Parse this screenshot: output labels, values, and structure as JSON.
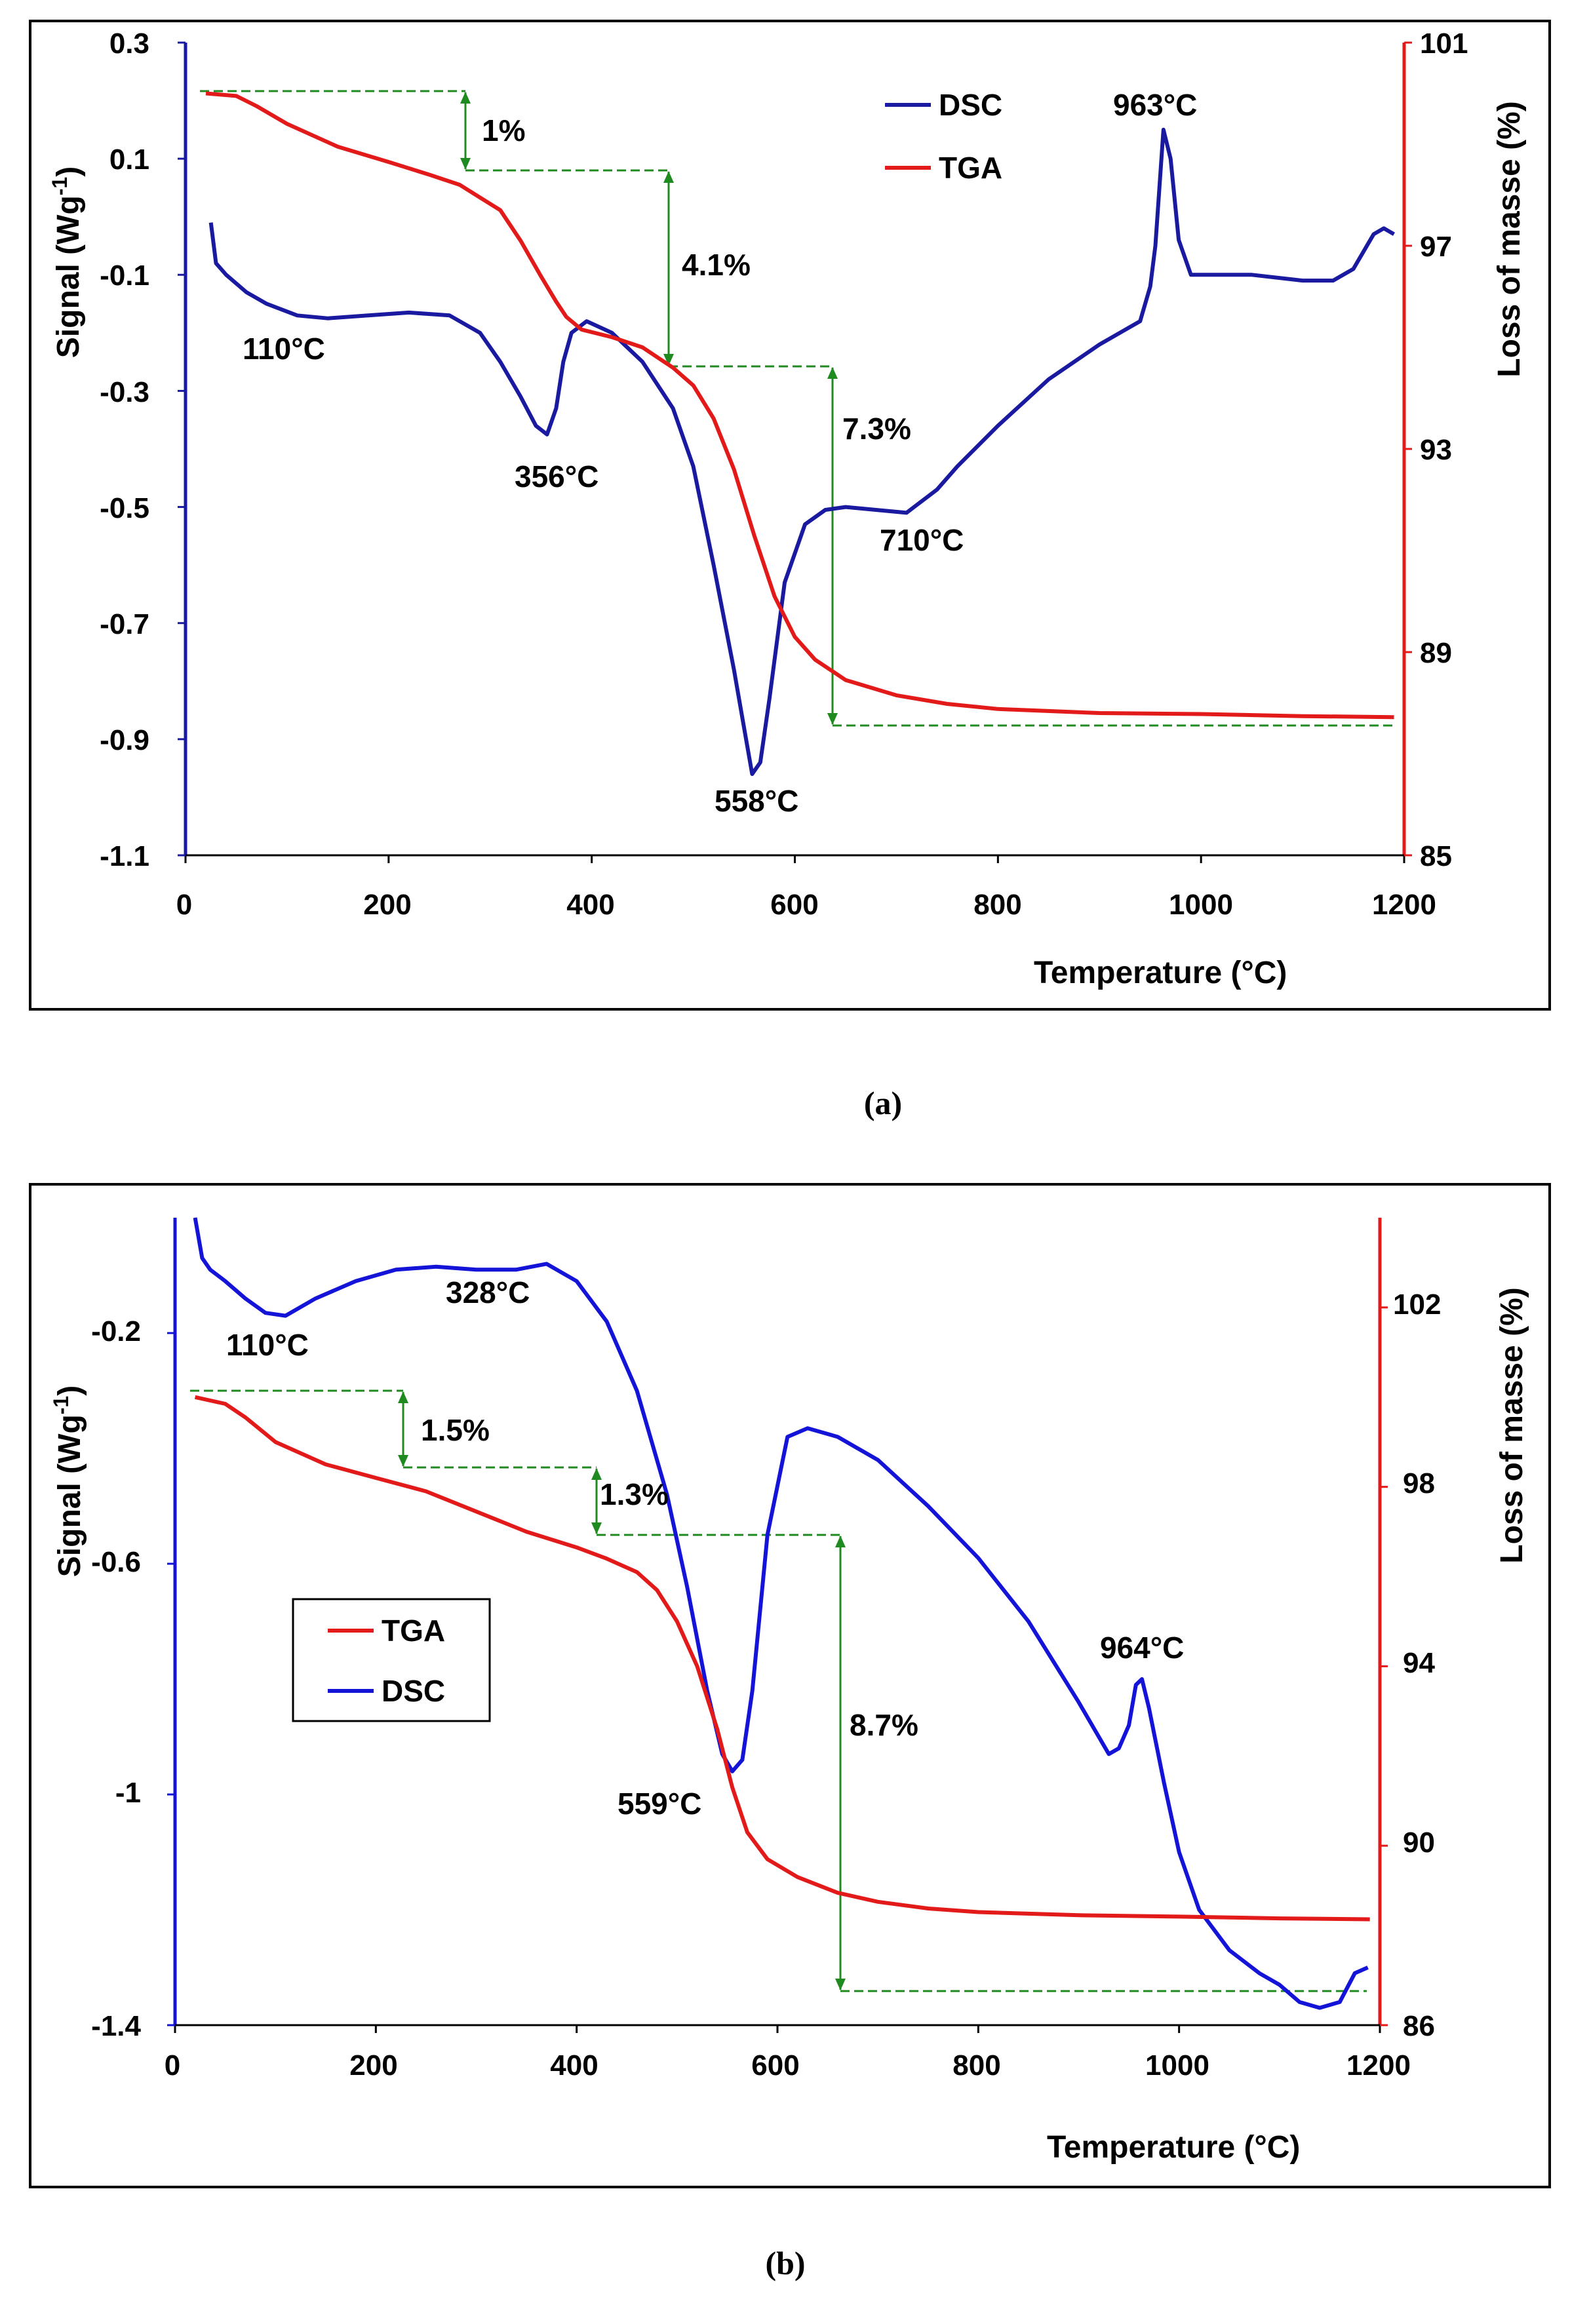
{
  "chart_data": [
    {
      "type": "line",
      "caption": "(a)",
      "xlabel": "Temperature (°C)",
      "ylabel_left": "Signal (Wg-1)",
      "ylabel_left_main": "Signal (Wg",
      "ylabel_left_sup": "-1",
      "ylabel_left_end": ")",
      "ylabel_right": "Loss of masse (%)",
      "xlim": [
        0,
        1200
      ],
      "ylim_left": [
        -1.1,
        0.3
      ],
      "ylim_right": [
        85,
        101
      ],
      "x_ticks": [
        "0",
        "200",
        "400",
        "600",
        "800",
        "1000",
        "1200"
      ],
      "y_left_ticks": [
        "0.3",
        "0.1",
        "-0.1",
        "-0.3",
        "-0.5",
        "-0.7",
        "-0.9",
        "-1.1"
      ],
      "y_right_ticks": [
        "101",
        "97",
        "93",
        "89",
        "85"
      ],
      "colors": {
        "DSC": "#1a1aa0",
        "TGA": "#e31a1a",
        "axis_right": "#e31a1a",
        "axis_left": "#1a1aa0",
        "guide": "#1f8a1f"
      },
      "legend": [
        "DSC",
        "TGA"
      ],
      "legend_position": "top-right",
      "series": [
        {
          "name": "DSC",
          "axis": "left",
          "x": [
            25,
            30,
            40,
            60,
            80,
            110,
            140,
            180,
            220,
            260,
            290,
            310,
            330,
            345,
            356,
            365,
            372,
            380,
            395,
            420,
            450,
            480,
            500,
            520,
            540,
            550,
            558,
            566,
            575,
            590,
            610,
            630,
            650,
            680,
            710,
            740,
            760,
            800,
            850,
            900,
            940,
            950,
            955,
            963,
            970,
            978,
            990,
            1010,
            1050,
            1100,
            1130,
            1150,
            1170,
            1180,
            1190
          ],
          "values": [
            -0.01,
            -0.08,
            -0.1,
            -0.13,
            -0.15,
            -0.17,
            -0.175,
            -0.17,
            -0.165,
            -0.17,
            -0.2,
            -0.25,
            -0.31,
            -0.36,
            -0.375,
            -0.33,
            -0.25,
            -0.2,
            -0.18,
            -0.2,
            -0.25,
            -0.33,
            -0.43,
            -0.6,
            -0.78,
            -0.88,
            -0.96,
            -0.94,
            -0.83,
            -0.63,
            -0.53,
            -0.505,
            -0.5,
            -0.505,
            -0.51,
            -0.47,
            -0.43,
            -0.36,
            -0.28,
            -0.22,
            -0.18,
            -0.12,
            -0.05,
            0.15,
            0.1,
            -0.04,
            -0.1,
            -0.1,
            -0.1,
            -0.11,
            -0.11,
            -0.09,
            -0.03,
            -0.02,
            -0.03
          ]
        },
        {
          "name": "TGA",
          "axis": "right",
          "x": [
            20,
            50,
            70,
            100,
            150,
            200,
            240,
            270,
            290,
            310,
            330,
            350,
            365,
            375,
            390,
            420,
            450,
            480,
            500,
            520,
            540,
            560,
            580,
            600,
            620,
            650,
            700,
            750,
            800,
            900,
            1000,
            1100,
            1190
          ],
          "values": [
            100.0,
            99.95,
            99.75,
            99.4,
            98.95,
            98.65,
            98.4,
            98.2,
            97.95,
            97.7,
            97.1,
            96.4,
            95.9,
            95.6,
            95.35,
            95.2,
            95.0,
            94.6,
            94.25,
            93.6,
            92.6,
            91.3,
            90.1,
            89.3,
            88.85,
            88.45,
            88.15,
            87.98,
            87.88,
            87.8,
            87.78,
            87.74,
            87.72
          ]
        }
      ],
      "annotations": [
        "110°C",
        "356°C",
        "558°C",
        "710°C",
        "963°C",
        "1%",
        "4.1%",
        "7.3%"
      ]
    },
    {
      "type": "line",
      "caption": "(b)",
      "xlabel": "Temperature (°C)",
      "ylabel_left": "Signal (Wg-1)",
      "ylabel_left_main": "Signal (Wg",
      "ylabel_left_sup": "-1",
      "ylabel_left_end": ")",
      "ylabel_right": "Loss of masse (%)",
      "xlim": [
        0,
        1200
      ],
      "ylim_left": [
        -1.4,
        0.0
      ],
      "ylim_right": [
        86,
        104
      ],
      "x_ticks": [
        "0",
        "200",
        "400",
        "600",
        "800",
        "1000",
        "1200"
      ],
      "y_left_ticks": [
        "-0.2",
        "-0.6",
        "-1",
        "-1.4"
      ],
      "y_right_ticks": [
        "102",
        "98",
        "94",
        "90",
        "86"
      ],
      "colors": {
        "DSC": "#1414d8",
        "TGA": "#e31a1a",
        "axis_right": "#e31a1a",
        "axis_left": "#1414d8",
        "guide": "#1f8a1f"
      },
      "legend": [
        "TGA",
        "DSC"
      ],
      "legend_position": "middle-left",
      "series": [
        {
          "name": "DSC",
          "axis": "left",
          "x": [
            20,
            27,
            35,
            50,
            70,
            90,
            110,
            140,
            180,
            220,
            260,
            300,
            340,
            370,
            400,
            430,
            460,
            490,
            510,
            530,
            545,
            555,
            565,
            575,
            590,
            610,
            630,
            660,
            700,
            750,
            800,
            850,
            900,
            930,
            940,
            950,
            957,
            963,
            970,
            985,
            1000,
            1020,
            1050,
            1080,
            1100,
            1120,
            1140,
            1160,
            1175,
            1188
          ],
          "values": [
            0.0,
            -0.07,
            -0.09,
            -0.11,
            -0.14,
            -0.165,
            -0.17,
            -0.14,
            -0.11,
            -0.09,
            -0.085,
            -0.09,
            -0.09,
            -0.08,
            -0.11,
            -0.18,
            -0.3,
            -0.48,
            -0.64,
            -0.82,
            -0.93,
            -0.96,
            -0.94,
            -0.82,
            -0.55,
            -0.38,
            -0.365,
            -0.38,
            -0.42,
            -0.5,
            -0.59,
            -0.7,
            -0.84,
            -0.93,
            -0.92,
            -0.88,
            -0.81,
            -0.8,
            -0.85,
            -0.98,
            -1.1,
            -1.2,
            -1.27,
            -1.31,
            -1.33,
            -1.36,
            -1.37,
            -1.36,
            -1.31,
            -1.3
          ]
        },
        {
          "name": "TGA",
          "axis": "right",
          "x": [
            20,
            50,
            70,
            100,
            150,
            200,
            250,
            300,
            350,
            400,
            430,
            460,
            480,
            500,
            520,
            540,
            555,
            570,
            590,
            620,
            660,
            700,
            750,
            800,
            900,
            1000,
            1100,
            1190
          ],
          "values": [
            100.0,
            99.85,
            99.55,
            99.0,
            98.5,
            98.2,
            97.9,
            97.45,
            97.0,
            96.65,
            96.4,
            96.1,
            95.7,
            95.0,
            94.0,
            92.6,
            91.3,
            90.3,
            89.7,
            89.3,
            88.95,
            88.75,
            88.6,
            88.52,
            88.45,
            88.42,
            88.38,
            88.36
          ]
        }
      ],
      "annotations": [
        "110°C",
        "328°C",
        "559°C",
        "964°C",
        "1.5%",
        "1.3%",
        "8.7%"
      ]
    }
  ]
}
